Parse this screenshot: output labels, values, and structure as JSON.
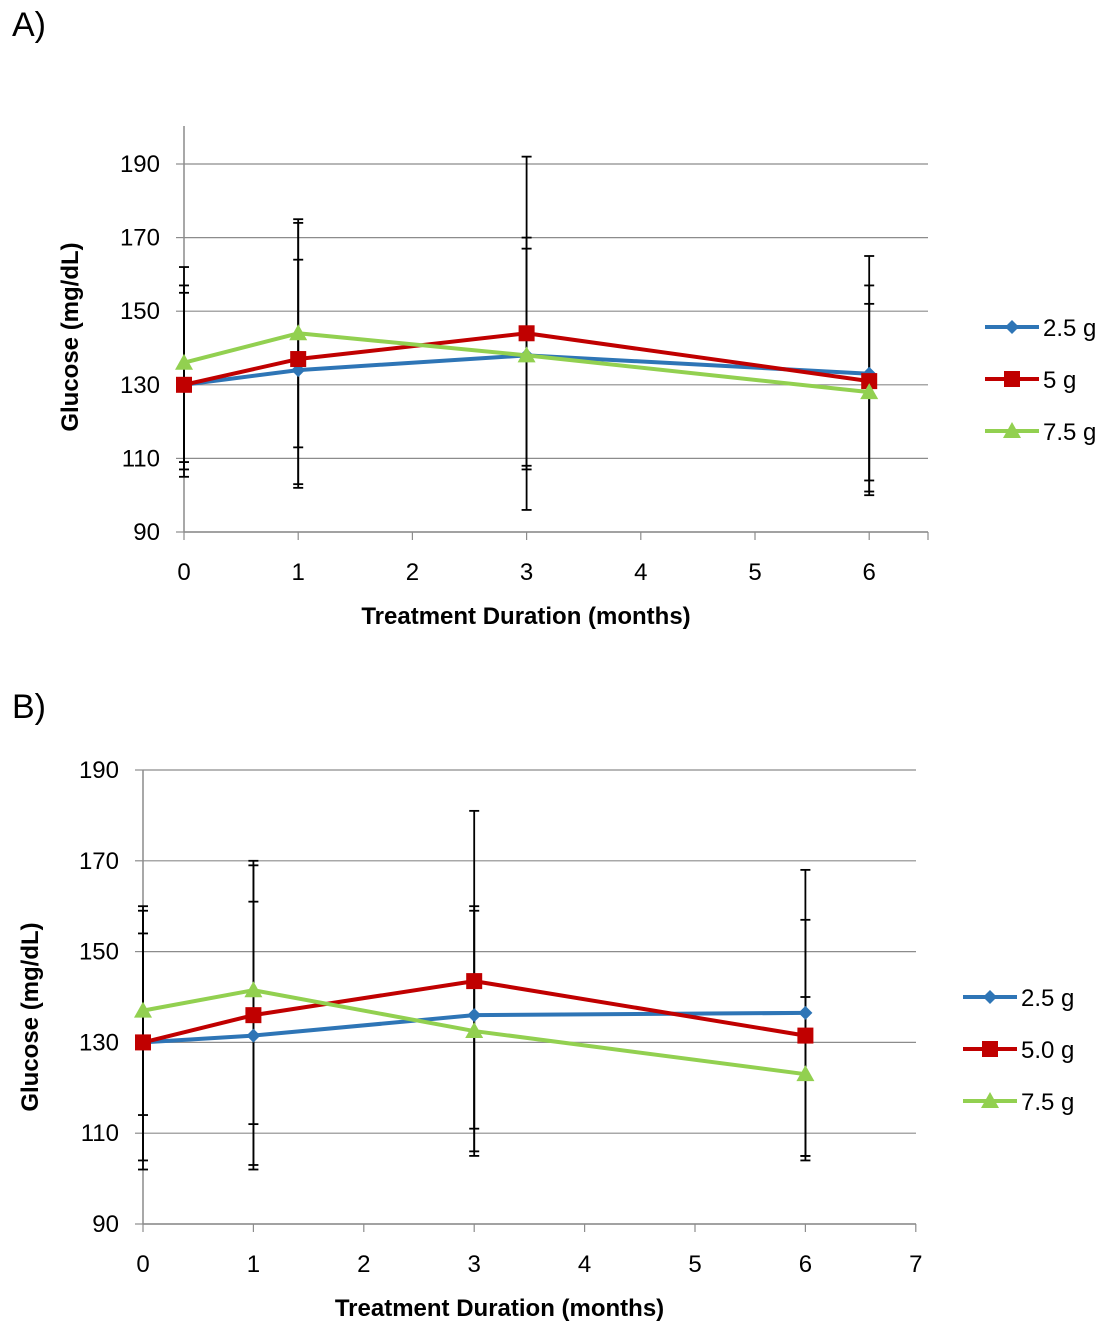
{
  "chart_data": [
    {
      "panel_label": "A)",
      "type": "line",
      "xlabel": "Treatment Duration (months)",
      "ylabel": "Glucose (mg/dL)",
      "xlim": [
        0,
        6.5
      ],
      "ylim": [
        90,
        200
      ],
      "x_ticks": [
        0,
        1,
        2,
        3,
        4,
        5,
        6
      ],
      "y_ticks": [
        90,
        110,
        130,
        150,
        170,
        190
      ],
      "grid": "horizontal",
      "legend_position": "right",
      "series": [
        {
          "name": "2.5 g",
          "color": "#2e75b6",
          "marker": "diamond",
          "x": [
            0,
            1,
            3,
            6
          ],
          "values": [
            130,
            134,
            138,
            133
          ],
          "error_low": [
            105,
            103,
            107,
            101
          ],
          "error_high": [
            157,
            164,
            167,
            157
          ]
        },
        {
          "name": "5 g",
          "color": "#c00000",
          "marker": "square",
          "x": [
            0,
            1,
            3,
            6
          ],
          "values": [
            130,
            137,
            144,
            131
          ],
          "error_low": [
            107,
            102,
            96,
            100
          ],
          "error_high": [
            162,
            175,
            192,
            165
          ]
        },
        {
          "name": "7.5 g",
          "color": "#92d050",
          "marker": "triangle",
          "x": [
            0,
            1,
            3,
            6
          ],
          "values": [
            136,
            144,
            138,
            128
          ],
          "error_low": [
            109,
            113,
            108,
            104
          ],
          "error_high": [
            155,
            174,
            170,
            152
          ]
        }
      ]
    },
    {
      "panel_label": "B)",
      "type": "line",
      "xlabel": "Treatment Duration (months)",
      "ylabel": "Glucose (mg/dL)",
      "xlim": [
        0,
        7
      ],
      "ylim": [
        90,
        190
      ],
      "x_ticks": [
        0,
        1,
        2,
        3,
        4,
        5,
        6,
        7
      ],
      "y_ticks": [
        90,
        110,
        130,
        150,
        170,
        190
      ],
      "grid": "horizontal",
      "legend_position": "right",
      "series": [
        {
          "name": "2.5 g",
          "color": "#2e75b6",
          "marker": "diamond",
          "x": [
            0,
            1,
            3,
            6
          ],
          "values": [
            130,
            131.5,
            136,
            136.5
          ],
          "error_low": [
            102,
            102,
            106,
            104
          ],
          "error_high": [
            154,
            161,
            159,
            157
          ]
        },
        {
          "name": "5.0 g",
          "color": "#c00000",
          "marker": "square",
          "x": [
            0,
            1,
            3,
            6
          ],
          "values": [
            130,
            136,
            143.5,
            131.5
          ],
          "error_low": [
            104,
            103,
            105,
            105
          ],
          "error_high": [
            160,
            170,
            181,
            168
          ]
        },
        {
          "name": "7.5 g",
          "color": "#92d050",
          "marker": "triangle",
          "x": [
            0,
            1,
            3,
            6
          ],
          "values": [
            137,
            141.5,
            132.5,
            123
          ],
          "error_low": [
            114,
            112,
            111,
            105
          ],
          "error_high": [
            159,
            169,
            160,
            140
          ]
        }
      ]
    }
  ]
}
